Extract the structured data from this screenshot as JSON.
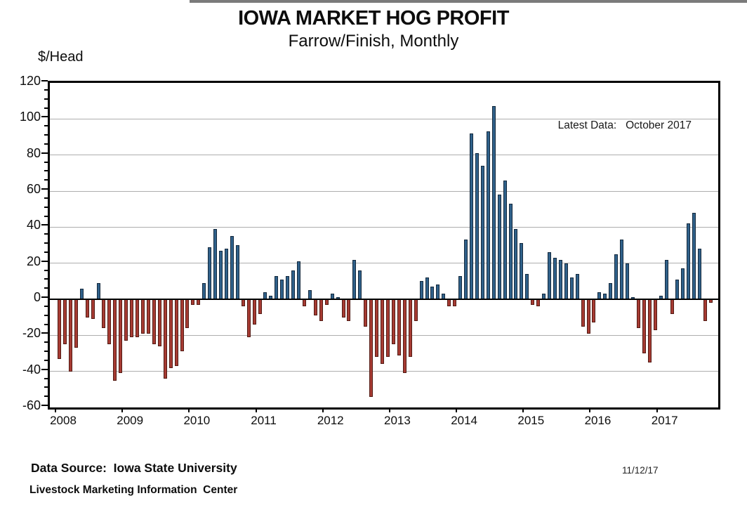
{
  "title": "IOWA MARKET HOG PROFIT",
  "subtitle": "Farrow/Finish, Monthly",
  "y_unit_label": "$/Head",
  "annotation": "Latest Data:   October 2017",
  "footer": {
    "source_line1": "Data Source:  Iowa State University",
    "source_line2": "Livestock Marketing Information  Center",
    "date": "11/12/17"
  },
  "colors": {
    "positive_fill": "#30618a",
    "positive_border": "#14293d",
    "negative_fill": "#a63b33",
    "negative_border": "#521a13",
    "gridline": "#aeaeae",
    "zero_line": "#000000",
    "plot_border": "#000000",
    "text": "#0d0d0d"
  },
  "chart_data": {
    "type": "bar",
    "title": "IOWA MARKET HOG PROFIT",
    "subtitle": "Farrow/Finish, Monthly",
    "xlabel": "",
    "ylabel": "$/Head",
    "ylim": [
      -60,
      120
    ],
    "ytick_interval": 20,
    "yminor_interval": 5,
    "grid": true,
    "legend": "none",
    "x_tick_labels": [
      "2008",
      "2009",
      "2010",
      "2011",
      "2012",
      "2013",
      "2014",
      "2015",
      "2016",
      "2017"
    ],
    "period_start": "2008-01",
    "period_end": "2017-10",
    "series": [
      {
        "year": 2008,
        "values": [
          -33,
          -25,
          -40,
          -27,
          6,
          -10,
          -11,
          9,
          -16,
          -25,
          -45,
          -41
        ]
      },
      {
        "year": 2009,
        "values": [
          -23,
          -21,
          -21,
          -19,
          -19,
          -25,
          -26,
          -44,
          -38,
          -37,
          -29,
          -16
        ]
      },
      {
        "year": 2010,
        "values": [
          -3,
          -3,
          9,
          29,
          39,
          27,
          28,
          35,
          30,
          -4,
          -21,
          -14
        ]
      },
      {
        "year": 2011,
        "values": [
          -8,
          4,
          2,
          13,
          11,
          13,
          16,
          21,
          -4,
          5,
          -9,
          -12
        ]
      },
      {
        "year": 2012,
        "values": [
          -3,
          3,
          1,
          -10,
          -12,
          22,
          16,
          -15,
          -54,
          -32,
          -36,
          -32
        ]
      },
      {
        "year": 2013,
        "values": [
          -25,
          -31,
          -41,
          -32,
          -12,
          10,
          12,
          7,
          8,
          3,
          -4,
          -4
        ]
      },
      {
        "year": 2014,
        "values": [
          13,
          33,
          92,
          81,
          74,
          93,
          107,
          58,
          66,
          53,
          39,
          31
        ]
      },
      {
        "year": 2015,
        "values": [
          14,
          -3,
          -4,
          3,
          26,
          23,
          22,
          20,
          12,
          14,
          -15,
          -19
        ]
      },
      {
        "year": 2016,
        "values": [
          -13,
          4,
          3,
          9,
          25,
          33,
          20,
          1,
          -16,
          -30,
          -35,
          -17
        ]
      },
      {
        "year": 2017,
        "values": [
          2,
          22,
          -8,
          11,
          17,
          42,
          48,
          28,
          -12,
          -2
        ]
      }
    ]
  }
}
